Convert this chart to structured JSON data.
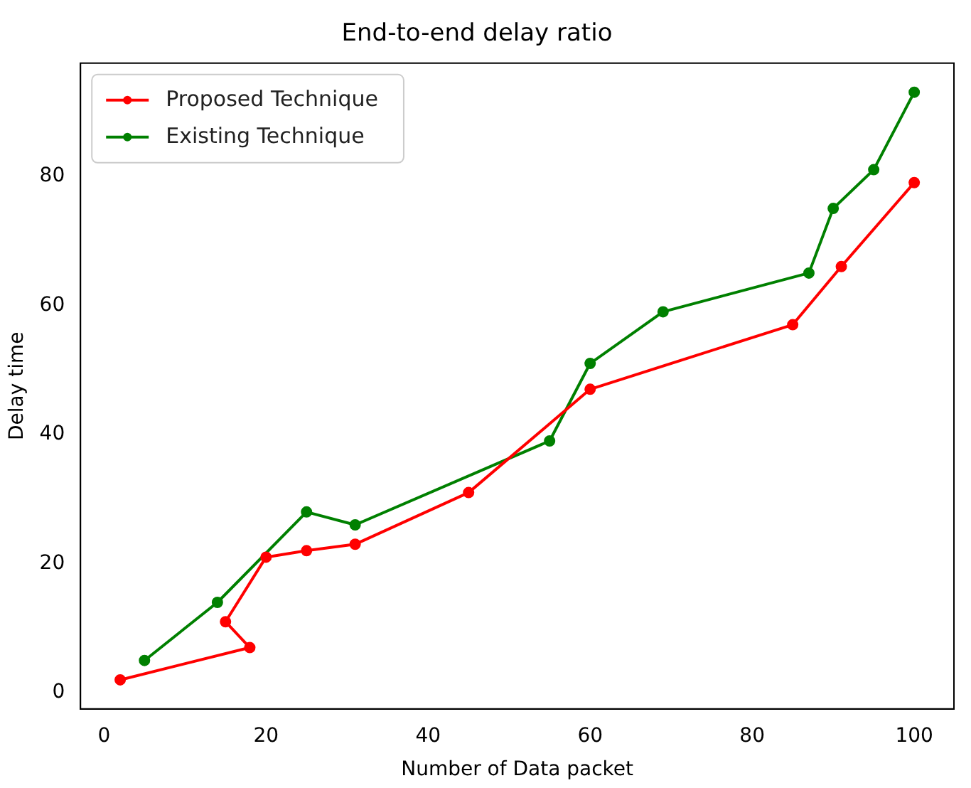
{
  "chart_data": {
    "type": "line",
    "title": "End-to-end delay ratio",
    "xlabel": "Number of Data packet",
    "ylabel": "Delay time",
    "series": [
      {
        "name": "Proposed Technique",
        "color": "#ff0000",
        "x": [
          2,
          18,
          15,
          20,
          25,
          31,
          45,
          60,
          85,
          91,
          100
        ],
        "values": [
          2,
          7,
          11,
          21,
          22,
          23,
          31,
          47,
          57,
          66,
          79
        ]
      },
      {
        "name": "Existing Technique",
        "color": "#008000",
        "x": [
          5,
          14,
          25,
          31,
          55,
          60,
          69,
          87,
          90,
          95,
          100
        ],
        "values": [
          5,
          14,
          28,
          26,
          39,
          51,
          59,
          65,
          75,
          81,
          93
        ]
      }
    ],
    "xlim": [
      -2.9,
      104.9
    ],
    "xticks": [
      0,
      20,
      40,
      60,
      80,
      100
    ],
    "ylim": [
      -2.5,
      97.5
    ],
    "yticks": [
      0,
      20,
      40,
      60,
      80
    ],
    "grid": false,
    "legend": "top left",
    "marker": "circle",
    "line_style": "solid"
  }
}
